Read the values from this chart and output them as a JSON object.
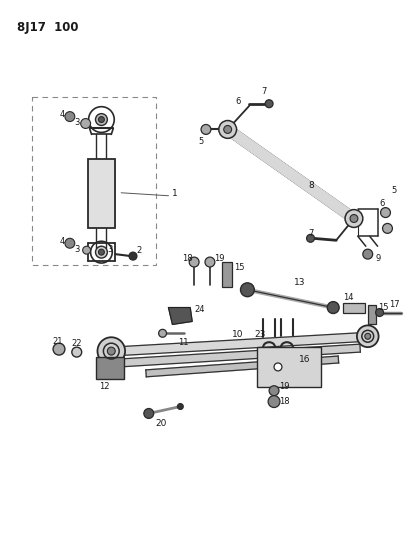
{
  "title": "8J17  100",
  "bg_color": "#ffffff",
  "line_color": "#2a2a2a",
  "text_color": "#1a1a1a",
  "fig_width": 4.09,
  "fig_height": 5.33,
  "dpi": 100
}
